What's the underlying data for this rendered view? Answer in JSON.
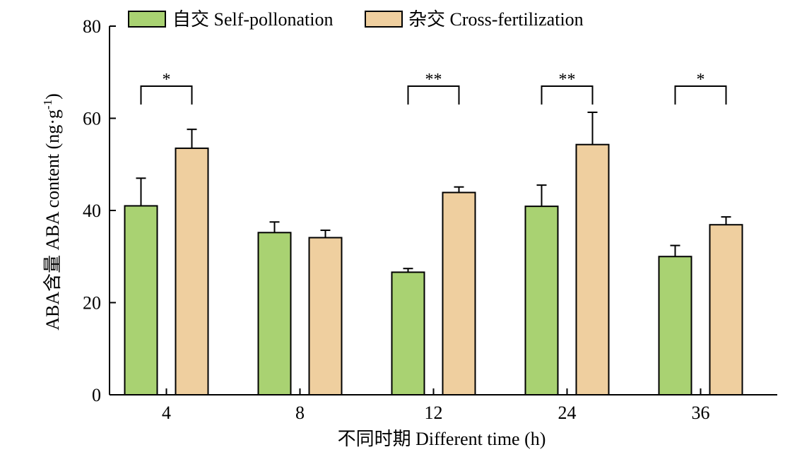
{
  "chart_data": {
    "type": "bar",
    "categories": [
      "4",
      "8",
      "12",
      "24",
      "36"
    ],
    "series": [
      {
        "name": "自交 Self-pollonation",
        "color": "#a9d272",
        "values": [
          41.0,
          35.2,
          26.6,
          40.9,
          30.0
        ],
        "errors": [
          6.0,
          2.3,
          0.8,
          4.6,
          2.4
        ]
      },
      {
        "name": "杂交 Cross-fertilization",
        "color": "#efcf9f",
        "values": [
          53.5,
          34.1,
          43.9,
          54.3,
          36.9
        ],
        "errors": [
          4.1,
          1.6,
          1.2,
          7.0,
          1.7
        ]
      }
    ],
    "significance": [
      "*",
      "",
      "**",
      "**",
      "*"
    ],
    "xlabel": "不同时期 Different time (h)",
    "ylabel": "ABA含量 ABA content (ng·g",
    "ylabel_sup": "-1",
    "ylabel_end": ")",
    "ylim": [
      0,
      80
    ],
    "yticks": [
      "0",
      "20",
      "40",
      "60",
      "80"
    ],
    "grid": false,
    "legend_position": "top"
  }
}
